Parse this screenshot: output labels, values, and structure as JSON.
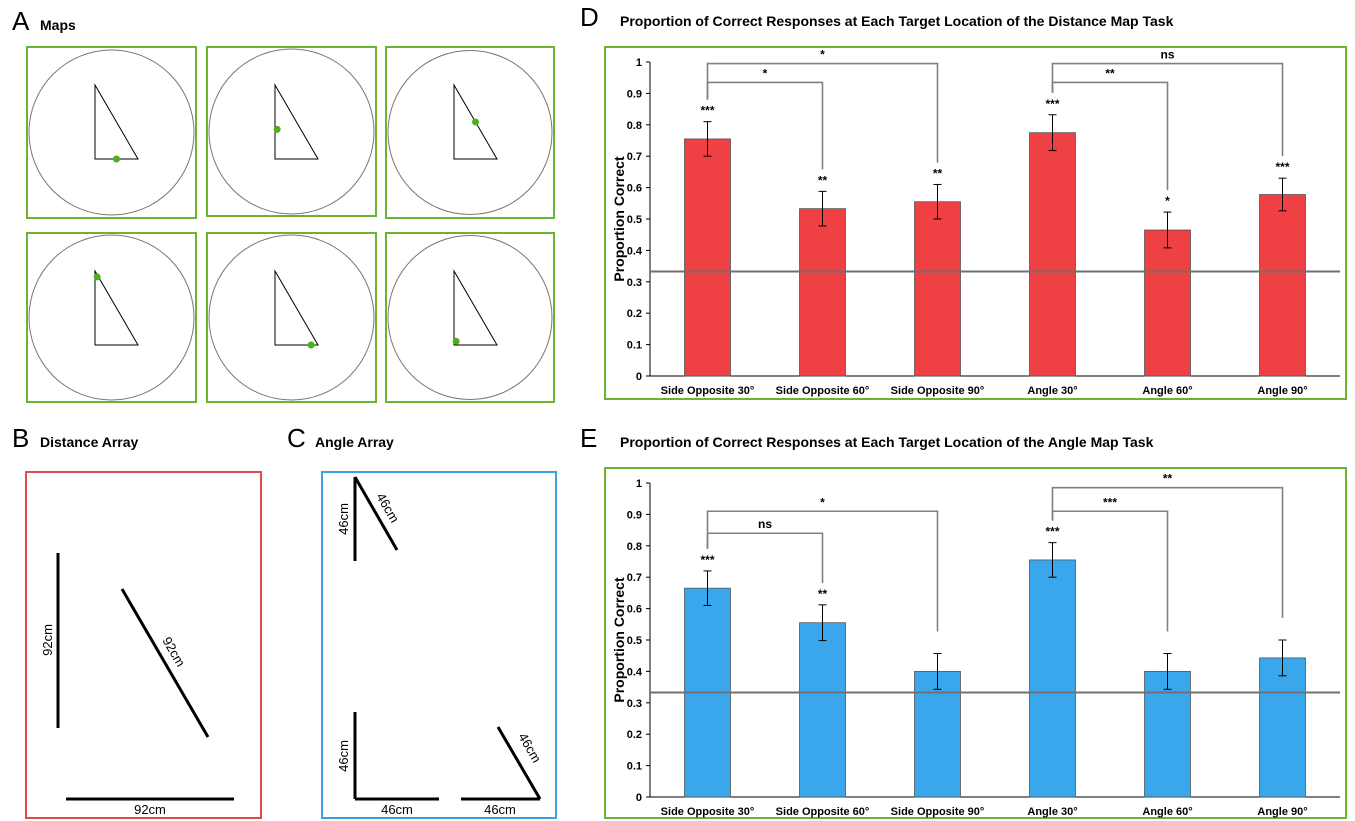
{
  "panels": {
    "a": {
      "letter": "A",
      "title": "Maps",
      "maps": [
        {
          "dot": [
            0.5,
            1.0
          ]
        },
        {
          "dot": [
            0.05,
            0.6
          ]
        },
        {
          "dot": [
            0.5,
            0.5
          ]
        },
        {
          "dot": [
            0.05,
            0.08
          ]
        },
        {
          "dot": [
            0.84,
            1.0
          ]
        },
        {
          "dot": [
            0.05,
            0.95
          ]
        }
      ],
      "colors": {
        "frame": "#6ab432",
        "dot": "#4caf1e"
      }
    },
    "b": {
      "letter": "B",
      "title": "Distance Array",
      "frame_color": "#e8474a",
      "labels": {
        "vertical": "92cm",
        "diagonal": "92cm",
        "horizontal": "92cm"
      }
    },
    "c": {
      "letter": "C",
      "title": "Angle Array",
      "frame_color": "#3aa0e0",
      "labels": {
        "top_vertical": "46cm",
        "top_diagonal": "46cm",
        "bottom_vertical": "46cm",
        "bottom_horizontal_left": "46cm",
        "bottom_horizontal_right": "46cm",
        "bottom_diagonal": "46cm"
      }
    }
  },
  "chart_data": [
    {
      "letter": "D",
      "type": "bar",
      "title": "Proportion of Correct Responses at Each Target Location of the Distance Map Task",
      "ylabel": "Proportion Correct",
      "xlabel": "",
      "ylim": [
        0,
        1
      ],
      "yticks": [
        "0",
        "0.1",
        "0.2",
        "0.3",
        "0.4",
        "0.5",
        "0.6",
        "0.7",
        "0.8",
        "0.9",
        "1"
      ],
      "categories": [
        "Side Opposite 30°",
        "Side Opposite 60°",
        "Side Opposite 90°",
        "Angle 30°",
        "Angle 60°",
        "Angle 90°"
      ],
      "values": [
        0.755,
        0.533,
        0.555,
        0.775,
        0.465,
        0.578
      ],
      "errors": [
        0.055,
        0.055,
        0.055,
        0.057,
        0.057,
        0.052
      ],
      "bar_labels": [
        "***",
        "**",
        "**",
        "***",
        "*",
        "***"
      ],
      "chance_line": 0.333,
      "comparisons": [
        {
          "from": 0,
          "to": 1,
          "y": 0.935,
          "label": "*"
        },
        {
          "from": 0,
          "to": 2,
          "y": 0.995,
          "label": "*"
        },
        {
          "from": 3,
          "to": 4,
          "y": 0.935,
          "label": "**"
        },
        {
          "from": 3,
          "to": 5,
          "y": 0.995,
          "label": "ns"
        }
      ],
      "bar_color": "#ef4144",
      "frame_color": "#6ab432"
    },
    {
      "letter": "E",
      "type": "bar",
      "title": "Proportion of Correct Responses at Each Target Location of the Angle Map Task",
      "ylabel": "Proportion Correct",
      "xlabel": "",
      "ylim": [
        0,
        1
      ],
      "yticks": [
        "0",
        "0.1",
        "0.2",
        "0.3",
        "0.4",
        "0.5",
        "0.6",
        "0.7",
        "0.8",
        "0.9",
        "1"
      ],
      "categories": [
        "Side Opposite 30°",
        "Side Opposite 60°",
        "Side Opposite 90°",
        "Angle 30°",
        "Angle 60°",
        "Angle 90°"
      ],
      "values": [
        0.665,
        0.555,
        0.4,
        0.755,
        0.4,
        0.443
      ],
      "errors": [
        0.055,
        0.057,
        0.057,
        0.055,
        0.057,
        0.057
      ],
      "bar_labels": [
        "***",
        "**",
        "",
        "***",
        "",
        ""
      ],
      "chance_line": 0.333,
      "comparisons": [
        {
          "from": 0,
          "to": 1,
          "y": 0.84,
          "label": "ns"
        },
        {
          "from": 0,
          "to": 2,
          "y": 0.91,
          "label": "*"
        },
        {
          "from": 3,
          "to": 4,
          "y": 0.91,
          "label": "***"
        },
        {
          "from": 3,
          "to": 5,
          "y": 0.985,
          "label": "**"
        }
      ],
      "bar_color": "#3aa7ec",
      "frame_color": "#6ab432"
    }
  ]
}
